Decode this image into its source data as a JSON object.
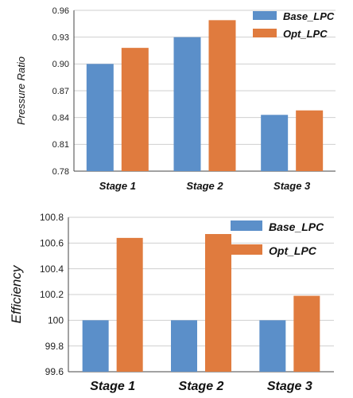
{
  "chart_data": [
    {
      "type": "bar",
      "categories": [
        "Stage 1",
        "Stage 2",
        "Stage 3"
      ],
      "series": [
        {
          "name": "Base_LPC",
          "values": [
            0.9,
            0.93,
            0.843
          ],
          "color": "#5b8fc9"
        },
        {
          "name": "Opt_LPC",
          "values": [
            0.918,
            0.949,
            0.848
          ],
          "color": "#e07b3e"
        }
      ],
      "ylabel": "Pressure Ratio",
      "ylim": [
        0.78,
        0.96
      ],
      "yticks": [
        "0.78",
        "0.81",
        "0.84",
        "0.87",
        "0.90",
        "0.93",
        "0.96"
      ],
      "grid": true,
      "legend": "top-right"
    },
    {
      "type": "bar",
      "categories": [
        "Stage 1",
        "Stage 2",
        "Stage 3"
      ],
      "series": [
        {
          "name": "Base_LPC",
          "values": [
            100.0,
            100.0,
            100.0
          ],
          "color": "#5b8fc9"
        },
        {
          "name": "Opt_LPC",
          "values": [
            100.64,
            100.67,
            100.19
          ],
          "color": "#e07b3e"
        }
      ],
      "ylabel": "Efficiency",
      "ylim": [
        99.6,
        100.8
      ],
      "yticks": [
        "99.6",
        "99.8",
        "100",
        "100.2",
        "100.4",
        "100.6",
        "100.8"
      ],
      "grid": true,
      "legend": "top-right"
    }
  ]
}
